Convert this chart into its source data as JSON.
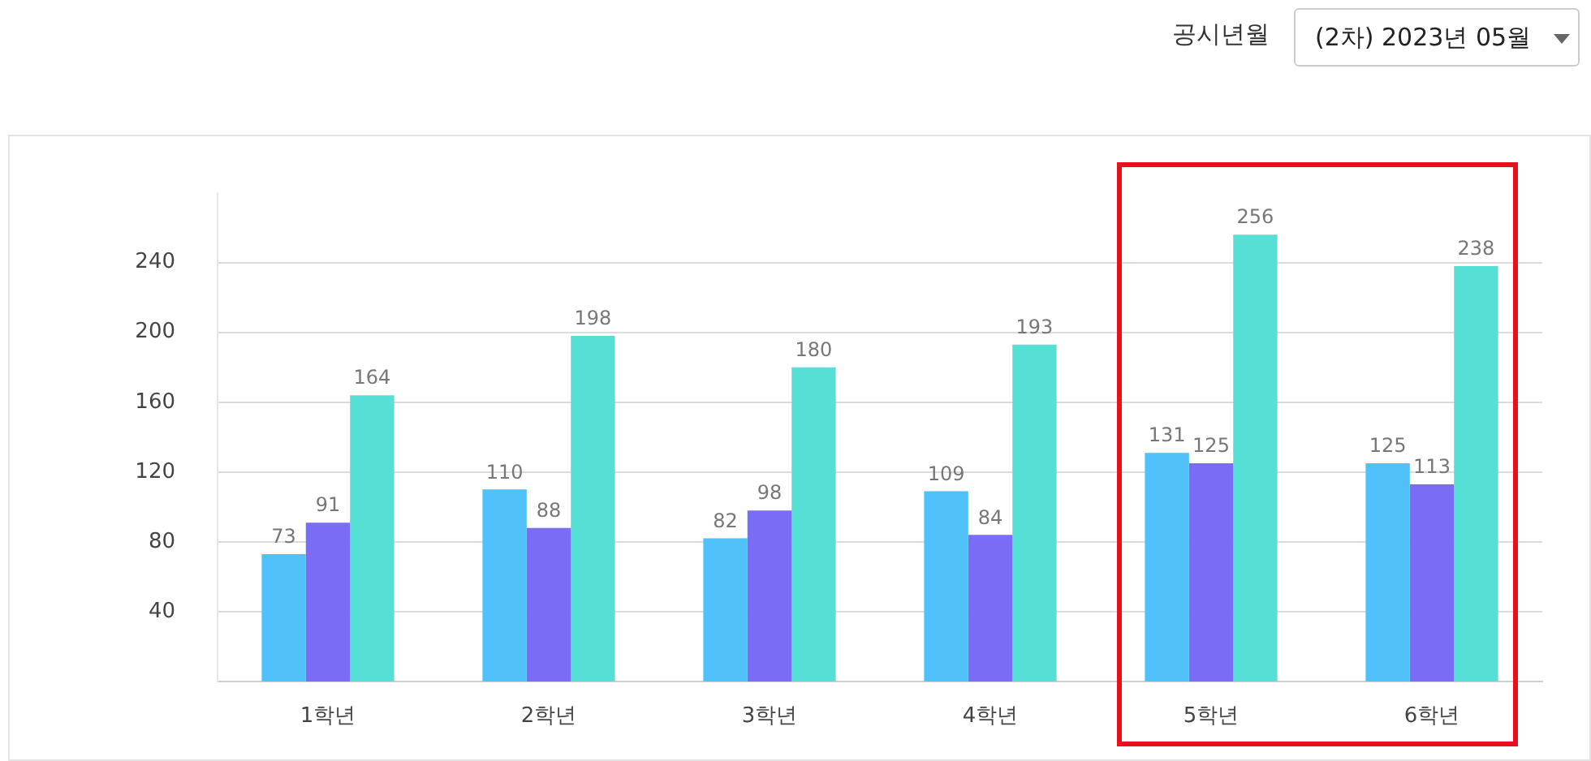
{
  "chart_data": {
    "type": "bar",
    "categories": [
      "1학년",
      "2학년",
      "3학년",
      "4학년",
      "5학년",
      "6학년"
    ],
    "series": [
      {
        "color": "#4fc0f8",
        "values": [
          73,
          110,
          82,
          109,
          131,
          125
        ]
      },
      {
        "color": "#7b6cf5",
        "values": [
          91,
          88,
          98,
          84,
          125,
          113
        ]
      },
      {
        "color": "#56e0d5",
        "values": [
          164,
          198,
          180,
          193,
          256,
          238
        ]
      }
    ],
    "ylim": [
      0,
      280
    ],
    "yticks": [
      40,
      80,
      120,
      160,
      200,
      240
    ],
    "grid": "y",
    "data_labels": true,
    "legend": false,
    "annotations": [
      "공시년월",
      "(2차) 2023년 05월"
    ]
  }
}
